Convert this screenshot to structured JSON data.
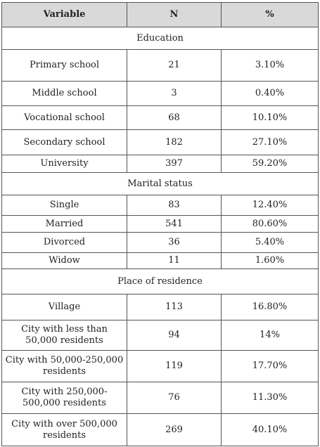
{
  "headers": [
    "Variable",
    "N",
    "%"
  ],
  "sections": [
    {
      "title": "Education",
      "rows": [
        {
          "variable": "Primary school",
          "n": "21",
          "pct": "3.10%"
        },
        {
          "variable": "Middle school",
          "n": "3",
          "pct": "0.40%"
        },
        {
          "variable": "Vocational school",
          "n": "68",
          "pct": "10.10%"
        },
        {
          "variable": "Secondary school",
          "n": "182",
          "pct": "27.10%"
        },
        {
          "variable": "University",
          "n": "397",
          "pct": "59.20%"
        }
      ]
    },
    {
      "title": "Marital status",
      "rows": [
        {
          "variable": "Single",
          "n": "83",
          "pct": "12.40%"
        },
        {
          "variable": "Married",
          "n": "541",
          "pct": "80.60%"
        },
        {
          "variable": "Divorced",
          "n": "36",
          "pct": "5.40%"
        },
        {
          "variable": "Widow",
          "n": "11",
          "pct": "1.60%"
        }
      ]
    },
    {
      "title": "Place of residence",
      "rows": [
        {
          "variable": "Village",
          "n": "113",
          "pct": "16.80%"
        },
        {
          "variable": "City with less than 50,000 residents",
          "n": "94",
          "pct": "14%"
        },
        {
          "variable": "City with 50,000-250,000 residents",
          "n": "119",
          "pct": "17.70%"
        },
        {
          "variable": "City with 250,000-500,000 residents",
          "n": "76",
          "pct": "11.30%"
        },
        {
          "variable": "City with over 500,000 residents",
          "n": "269",
          "pct": "40.10%"
        }
      ]
    }
  ]
}
